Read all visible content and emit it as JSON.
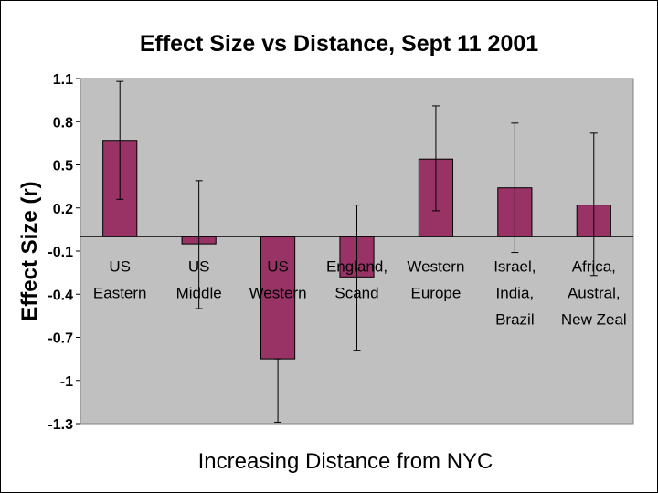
{
  "chart_data": {
    "type": "bar",
    "title": "Effect Size vs Distance, Sept 11 2001",
    "xlabel": "Increasing Distance from NYC",
    "ylabel": "Effect Size (r)",
    "categories": [
      [
        "US",
        "Eastern"
      ],
      [
        "US",
        "Middle"
      ],
      [
        "US",
        "Western"
      ],
      [
        "England,",
        "Scand"
      ],
      [
        "Western",
        "Europe"
      ],
      [
        "Israel,",
        "India,",
        "Brazil"
      ],
      [
        "Africa,",
        "Austral,",
        "New Zeal"
      ]
    ],
    "values": [
      0.67,
      -0.05,
      -0.85,
      -0.28,
      0.54,
      0.34,
      0.22
    ],
    "error_low": [
      0.26,
      -0.5,
      -1.29,
      -0.79,
      0.18,
      -0.11,
      -0.27
    ],
    "error_high": [
      1.08,
      0.39,
      -0.85,
      0.22,
      0.91,
      0.79,
      0.72
    ],
    "ylim": [
      -1.3,
      1.1
    ],
    "yticks": [
      "1.1",
      "0.8",
      "0.5",
      "0.2",
      "-0.1",
      "-0.4",
      "-0.7",
      "-1",
      "-1.3"
    ],
    "ytick_values": [
      1.1,
      0.8,
      0.5,
      0.2,
      -0.1,
      -0.4,
      -0.7,
      -1.0,
      -1.3
    ],
    "colors": {
      "bar": "#993366",
      "plot_bg": "#c0c0c0",
      "axis": "#000000"
    },
    "grid": false,
    "legend": "none"
  }
}
